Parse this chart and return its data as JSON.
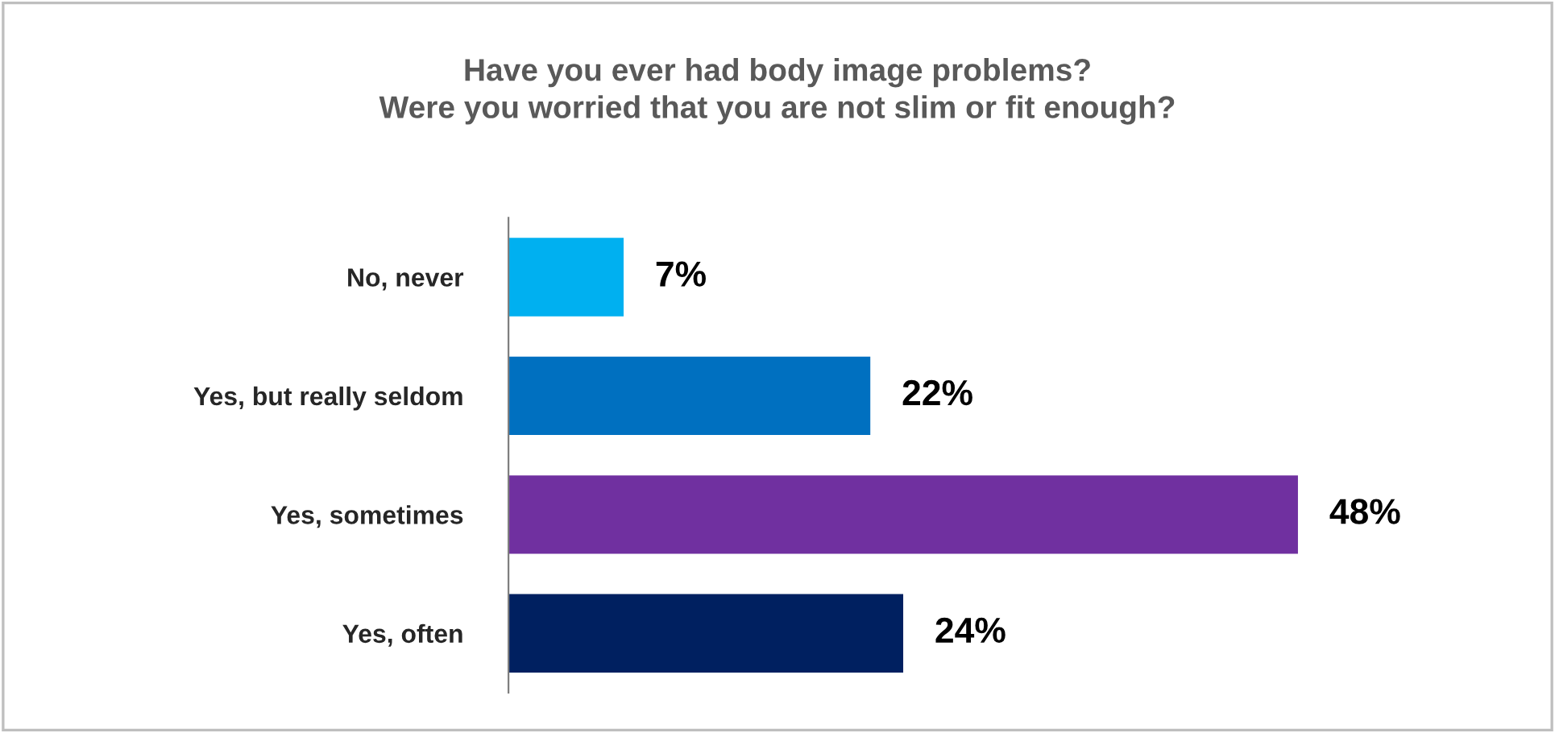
{
  "chart_data": {
    "type": "bar",
    "orientation": "horizontal",
    "title": "Have you ever had body image problems?\nWere you worried that you are not slim or fit enough?",
    "categories": [
      "No, never",
      "Yes, but really seldom",
      "Yes, sometimes",
      "Yes, often"
    ],
    "values": [
      7,
      22,
      48,
      24
    ],
    "colors": [
      "#00b0f0",
      "#0070c0",
      "#7030a0",
      "#002060"
    ],
    "value_labels": [
      "7%",
      "22%",
      "48%",
      "24%"
    ],
    "grid": false,
    "legend": false,
    "tick_labels": "y"
  }
}
